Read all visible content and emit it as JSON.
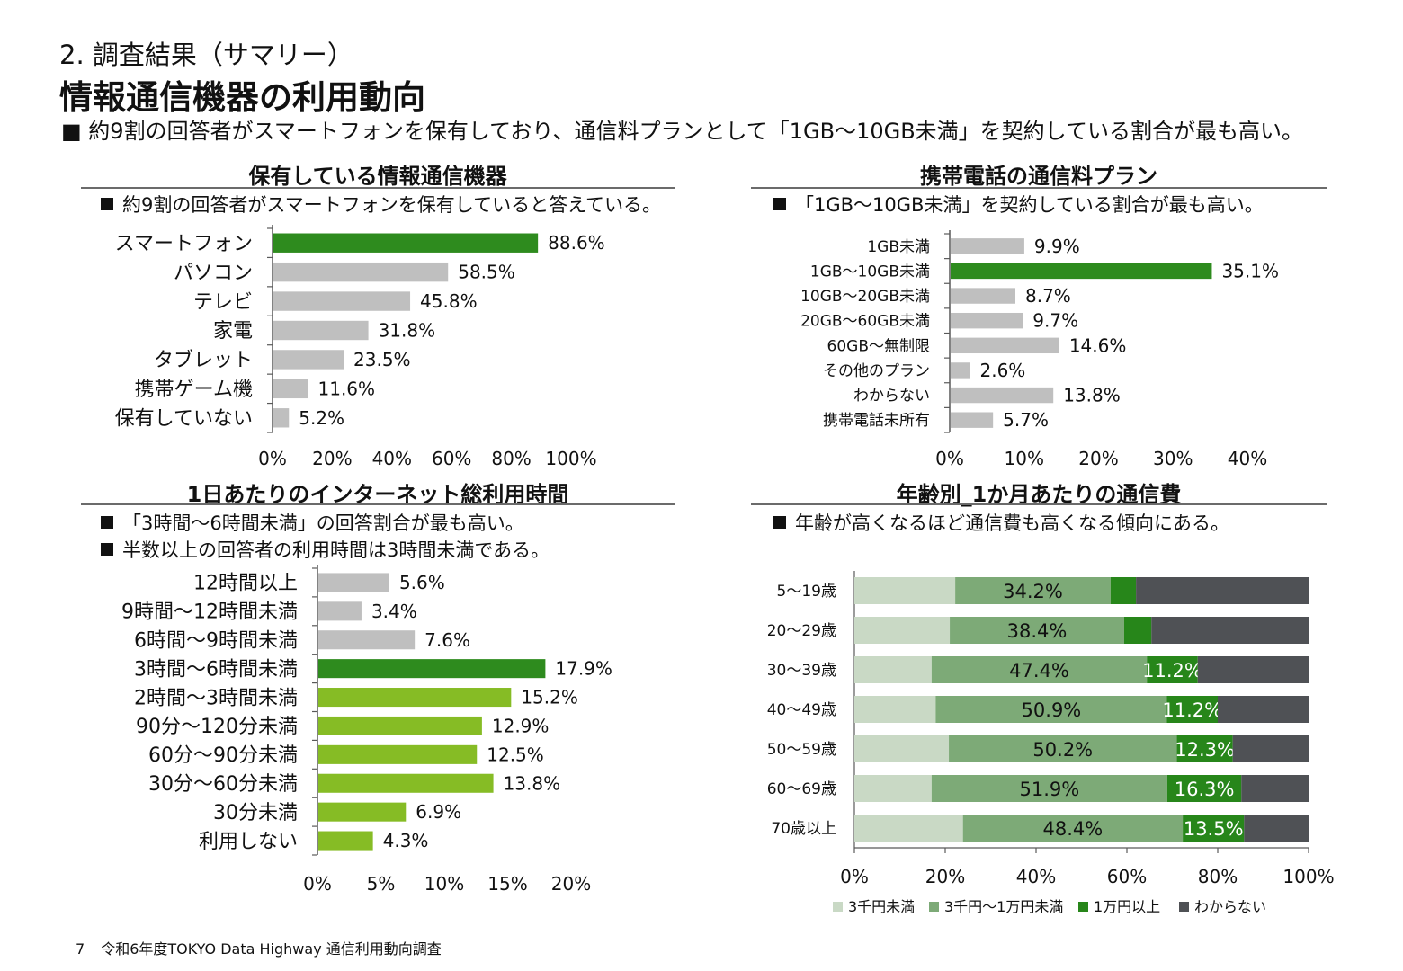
{
  "header": {
    "section": "2. 調査結果（サマリー）",
    "title": "情報通信機器の利用動向",
    "summary": "■ 約9割の回答者がスマートフォンを保有しており、通信料プランとして「1GB～10GB未満」を契約している割合が最も高い。"
  },
  "panels": {
    "devices": {
      "title": "保有している情報通信機器",
      "bullets": [
        "約9割の回答者がスマートフォンを保有していると答えている。"
      ]
    },
    "plans": {
      "title": "携帯電話の通信料プラン",
      "bullets": [
        "「1GB～10GB未満」を契約している割合が最も高い。"
      ]
    },
    "internet": {
      "title": "1日あたりのインターネット総利用時間",
      "bullets": [
        "「3時間～6時間未満」の回答割合が最も高い。",
        "半数以上の回答者の利用時間は3時間未満である。"
      ]
    },
    "cost": {
      "title": "年齢別_1か月あたりの通信費",
      "bullets": [
        "年齢が高くなるほど通信費も高くなる傾向にある。"
      ]
    }
  },
  "colors": {
    "highlight": "#2e8b1e",
    "gray_bar": "#bfbfbf",
    "light_green": "#86bc25",
    "axis": "#595959",
    "seg_under3k": "#c9d9c5",
    "seg_3k_10k": "#7daa77",
    "seg_over10k": "#27861a",
    "seg_unknown": "#4f5155"
  },
  "chart_data": [
    {
      "id": "devices",
      "type": "bar",
      "orientation": "horizontal",
      "categories": [
        "スマートフォン",
        "パソコン",
        "テレビ",
        "家電",
        "タブレット",
        "携帯ゲーム機",
        "保有していない"
      ],
      "values": [
        88.6,
        58.5,
        45.8,
        31.8,
        23.5,
        11.6,
        5.2
      ],
      "value_labels": [
        "88.6%",
        "58.5%",
        "45.8%",
        "31.8%",
        "23.5%",
        "11.6%",
        "5.2%"
      ],
      "highlight_index": 0,
      "xlim": [
        0,
        100
      ],
      "xticks": [
        "0%",
        "20%",
        "40%",
        "60%",
        "80%",
        "100%"
      ],
      "grid": false
    },
    {
      "id": "plans",
      "type": "bar",
      "orientation": "horizontal",
      "categories": [
        "1GB未満",
        "1GB～10GB未満",
        "10GB～20GB未満",
        "20GB～60GB未満",
        "60GB～無制限",
        "その他のプラン",
        "わからない",
        "携帯電話未所有"
      ],
      "values": [
        9.9,
        35.1,
        8.7,
        9.7,
        14.6,
        2.6,
        13.8,
        5.7
      ],
      "value_labels": [
        "9.9%",
        "35.1%",
        "8.7%",
        "9.7%",
        "14.6%",
        "2.6%",
        "13.8%",
        "5.7%"
      ],
      "highlight_index": 1,
      "xlim": [
        0,
        40
      ],
      "xticks": [
        "0%",
        "10%",
        "20%",
        "30%",
        "40%"
      ],
      "grid": false
    },
    {
      "id": "internet",
      "type": "bar",
      "orientation": "horizontal",
      "categories": [
        "12時間以上",
        "9時間～12時間未満",
        "6時間～9時間未満",
        "3時間～6時間未満",
        "2時間～3時間未満",
        "90分～120分未満",
        "60分～90分未満",
        "30分～60分未満",
        "30分未満",
        "利用しない"
      ],
      "values": [
        5.6,
        3.4,
        7.6,
        17.9,
        15.2,
        12.9,
        12.5,
        13.8,
        6.9,
        4.3
      ],
      "value_labels": [
        "5.6%",
        "3.4%",
        "7.6%",
        "17.9%",
        "15.2%",
        "12.9%",
        "12.5%",
        "13.8%",
        "6.9%",
        "4.3%"
      ],
      "highlight_index": 3,
      "xlim": [
        0,
        20
      ],
      "xticks": [
        "0%",
        "5%",
        "10%",
        "15%",
        "20%"
      ],
      "grid": false
    },
    {
      "id": "cost",
      "type": "bar",
      "stacked": true,
      "orientation": "horizontal",
      "categories": [
        "5～19歳",
        "20～29歳",
        "30～39歳",
        "40～49歳",
        "50～59歳",
        "60～69歳",
        "70歳以上"
      ],
      "series": [
        {
          "name": "3千円未満",
          "values": [
            22.2,
            21.0,
            17.0,
            17.9,
            20.8,
            17.0,
            23.9
          ]
        },
        {
          "name": "3千円～1万円未満",
          "values": [
            34.2,
            38.4,
            47.4,
            50.9,
            50.2,
            51.9,
            48.4
          ],
          "labels": [
            "34.2%",
            "38.4%",
            "47.4%",
            "50.9%",
            "50.2%",
            "51.9%",
            "48.4%"
          ]
        },
        {
          "name": "1万円以上",
          "values": [
            5.6,
            6.0,
            11.2,
            11.2,
            12.3,
            16.3,
            13.5
          ],
          "labels": [
            "",
            "",
            "11.2%",
            "11.2%",
            "12.3%",
            "16.3%",
            "13.5%"
          ]
        },
        {
          "name": "わからない",
          "values": [
            38.0,
            34.6,
            24.4,
            20.0,
            16.7,
            14.8,
            14.2
          ]
        }
      ],
      "xlim": [
        0,
        100
      ],
      "xticks": [
        "0%",
        "20%",
        "40%",
        "60%",
        "80%",
        "100%"
      ],
      "legend": "bottom",
      "grid": false
    }
  ],
  "footer": {
    "page": "7",
    "source": "令和6年度TOKYO Data Highway 通信利用動向調査"
  }
}
